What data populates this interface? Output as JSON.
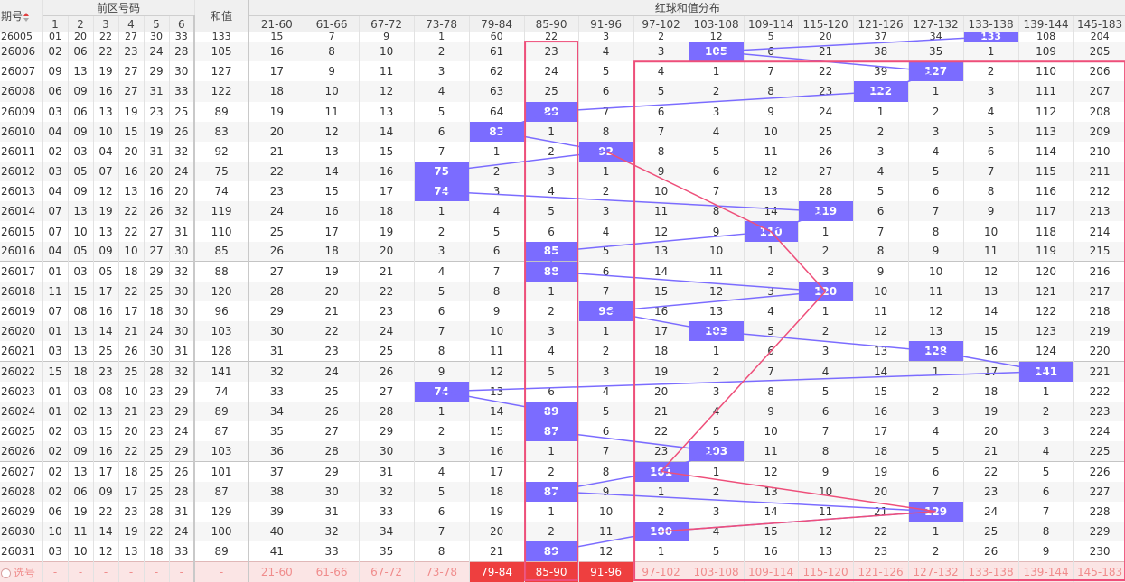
{
  "header": {
    "issue_label": "期号",
    "front_label": "前区号码",
    "front_cols": [
      "1",
      "2",
      "3",
      "4",
      "5",
      "6"
    ],
    "sum_label": "和值",
    "dist_label": "红球和值分布",
    "ranges": [
      "21-60",
      "61-66",
      "67-72",
      "73-78",
      "79-84",
      "85-90",
      "91-96",
      "97-102",
      "103-108",
      "109-114",
      "115-120",
      "121-126",
      "127-132",
      "133-138",
      "139-144",
      "145-183"
    ]
  },
  "colors": {
    "hit": "#7b6cff",
    "trend_line": "#7b6cff",
    "box": "#ee4f7a",
    "highlight": "#ee3f3f"
  },
  "rows": [
    {
      "issue": "26005",
      "front": [
        "01",
        "20",
        "22",
        "27",
        "30",
        "33"
      ],
      "sum": "133",
      "dist": [
        "15",
        "7",
        "9",
        "1",
        "60",
        "22",
        "3",
        "2",
        "12",
        "5",
        "20",
        "37",
        "34",
        "133",
        "108",
        "204"
      ],
      "hit": 13
    },
    {
      "issue": "26006",
      "front": [
        "02",
        "06",
        "22",
        "23",
        "24",
        "28"
      ],
      "sum": "105",
      "dist": [
        "16",
        "8",
        "10",
        "2",
        "61",
        "23",
        "4",
        "3",
        "105",
        "6",
        "21",
        "38",
        "35",
        "1",
        "109",
        "205"
      ],
      "hit": 8
    },
    {
      "issue": "26007",
      "front": [
        "09",
        "13",
        "19",
        "27",
        "29",
        "30"
      ],
      "sum": "127",
      "dist": [
        "17",
        "9",
        "11",
        "3",
        "62",
        "24",
        "5",
        "4",
        "1",
        "7",
        "22",
        "39",
        "127",
        "2",
        "110",
        "206"
      ],
      "hit": 12
    },
    {
      "issue": "26008",
      "front": [
        "06",
        "09",
        "16",
        "27",
        "31",
        "33"
      ],
      "sum": "122",
      "dist": [
        "18",
        "10",
        "12",
        "4",
        "63",
        "25",
        "6",
        "5",
        "2",
        "8",
        "23",
        "122",
        "1",
        "3",
        "111",
        "207"
      ],
      "hit": 11
    },
    {
      "issue": "26009",
      "front": [
        "03",
        "06",
        "13",
        "19",
        "23",
        "25"
      ],
      "sum": "89",
      "dist": [
        "19",
        "11",
        "13",
        "5",
        "64",
        "89",
        "7",
        "6",
        "3",
        "9",
        "24",
        "1",
        "2",
        "4",
        "112",
        "208"
      ],
      "hit": 5
    },
    {
      "issue": "26010",
      "front": [
        "04",
        "09",
        "10",
        "15",
        "19",
        "26"
      ],
      "sum": "83",
      "dist": [
        "20",
        "12",
        "14",
        "6",
        "83",
        "1",
        "8",
        "7",
        "4",
        "10",
        "25",
        "2",
        "3",
        "5",
        "113",
        "209"
      ],
      "hit": 4
    },
    {
      "issue": "26011",
      "front": [
        "02",
        "03",
        "04",
        "20",
        "31",
        "32"
      ],
      "sum": "92",
      "dist": [
        "21",
        "13",
        "15",
        "7",
        "1",
        "2",
        "92",
        "8",
        "5",
        "11",
        "26",
        "3",
        "4",
        "6",
        "114",
        "210"
      ],
      "hit": 6
    },
    {
      "issue": "26012",
      "front": [
        "03",
        "05",
        "07",
        "16",
        "20",
        "24"
      ],
      "sum": "75",
      "dist": [
        "22",
        "14",
        "16",
        "75",
        "2",
        "3",
        "1",
        "9",
        "6",
        "12",
        "27",
        "4",
        "5",
        "7",
        "115",
        "211"
      ],
      "hit": 3
    },
    {
      "issue": "26013",
      "front": [
        "04",
        "09",
        "12",
        "13",
        "16",
        "20"
      ],
      "sum": "74",
      "dist": [
        "23",
        "15",
        "17",
        "74",
        "3",
        "4",
        "2",
        "10",
        "7",
        "13",
        "28",
        "5",
        "6",
        "8",
        "116",
        "212"
      ],
      "hit": 3
    },
    {
      "issue": "26014",
      "front": [
        "07",
        "13",
        "19",
        "22",
        "26",
        "32"
      ],
      "sum": "119",
      "dist": [
        "24",
        "16",
        "18",
        "1",
        "4",
        "5",
        "3",
        "11",
        "8",
        "14",
        "119",
        "6",
        "7",
        "9",
        "117",
        "213"
      ],
      "hit": 10
    },
    {
      "issue": "26015",
      "front": [
        "07",
        "10",
        "13",
        "22",
        "27",
        "31"
      ],
      "sum": "110",
      "dist": [
        "25",
        "17",
        "19",
        "2",
        "5",
        "6",
        "4",
        "12",
        "9",
        "110",
        "1",
        "7",
        "8",
        "10",
        "118",
        "214"
      ],
      "hit": 9
    },
    {
      "issue": "26016",
      "front": [
        "04",
        "05",
        "09",
        "10",
        "27",
        "30"
      ],
      "sum": "85",
      "dist": [
        "26",
        "18",
        "20",
        "3",
        "6",
        "85",
        "5",
        "13",
        "10",
        "1",
        "2",
        "8",
        "9",
        "11",
        "119",
        "215"
      ],
      "hit": 5
    },
    {
      "issue": "26017",
      "front": [
        "01",
        "03",
        "05",
        "18",
        "29",
        "32"
      ],
      "sum": "88",
      "dist": [
        "27",
        "19",
        "21",
        "4",
        "7",
        "88",
        "6",
        "14",
        "11",
        "2",
        "3",
        "9",
        "10",
        "12",
        "120",
        "216"
      ],
      "hit": 5
    },
    {
      "issue": "26018",
      "front": [
        "11",
        "15",
        "17",
        "22",
        "25",
        "30"
      ],
      "sum": "120",
      "dist": [
        "28",
        "20",
        "22",
        "5",
        "8",
        "1",
        "7",
        "15",
        "12",
        "3",
        "120",
        "10",
        "11",
        "13",
        "121",
        "217"
      ],
      "hit": 10
    },
    {
      "issue": "26019",
      "front": [
        "07",
        "08",
        "16",
        "17",
        "18",
        "30"
      ],
      "sum": "96",
      "dist": [
        "29",
        "21",
        "23",
        "6",
        "9",
        "2",
        "96",
        "16",
        "13",
        "4",
        "1",
        "11",
        "12",
        "14",
        "122",
        "218"
      ],
      "hit": 6
    },
    {
      "issue": "26020",
      "front": [
        "01",
        "13",
        "14",
        "21",
        "24",
        "30"
      ],
      "sum": "103",
      "dist": [
        "30",
        "22",
        "24",
        "7",
        "10",
        "3",
        "1",
        "17",
        "103",
        "5",
        "2",
        "12",
        "13",
        "15",
        "123",
        "219"
      ],
      "hit": 8
    },
    {
      "issue": "26021",
      "front": [
        "03",
        "13",
        "25",
        "26",
        "30",
        "31"
      ],
      "sum": "128",
      "dist": [
        "31",
        "23",
        "25",
        "8",
        "11",
        "4",
        "2",
        "18",
        "1",
        "6",
        "3",
        "13",
        "128",
        "16",
        "124",
        "220"
      ],
      "hit": 12
    },
    {
      "issue": "26022",
      "front": [
        "15",
        "18",
        "23",
        "25",
        "28",
        "32"
      ],
      "sum": "141",
      "dist": [
        "32",
        "24",
        "26",
        "9",
        "12",
        "5",
        "3",
        "19",
        "2",
        "7",
        "4",
        "14",
        "1",
        "17",
        "141",
        "221"
      ],
      "hit": 14
    },
    {
      "issue": "26023",
      "front": [
        "01",
        "03",
        "08",
        "10",
        "23",
        "29"
      ],
      "sum": "74",
      "dist": [
        "33",
        "25",
        "27",
        "74",
        "13",
        "6",
        "4",
        "20",
        "3",
        "8",
        "5",
        "15",
        "2",
        "18",
        "1",
        "222"
      ],
      "hit": 3
    },
    {
      "issue": "26024",
      "front": [
        "01",
        "02",
        "13",
        "21",
        "23",
        "29"
      ],
      "sum": "89",
      "dist": [
        "34",
        "26",
        "28",
        "1",
        "14",
        "89",
        "5",
        "21",
        "4",
        "9",
        "6",
        "16",
        "3",
        "19",
        "2",
        "223"
      ],
      "hit": 5
    },
    {
      "issue": "26025",
      "front": [
        "02",
        "03",
        "15",
        "20",
        "23",
        "24"
      ],
      "sum": "87",
      "dist": [
        "35",
        "27",
        "29",
        "2",
        "15",
        "87",
        "6",
        "22",
        "5",
        "10",
        "7",
        "17",
        "4",
        "20",
        "3",
        "224"
      ],
      "hit": 5
    },
    {
      "issue": "26026",
      "front": [
        "02",
        "09",
        "16",
        "22",
        "25",
        "29"
      ],
      "sum": "103",
      "dist": [
        "36",
        "28",
        "30",
        "3",
        "16",
        "1",
        "7",
        "23",
        "103",
        "11",
        "8",
        "18",
        "5",
        "21",
        "4",
        "225"
      ],
      "hit": 8
    },
    {
      "issue": "26027",
      "front": [
        "02",
        "13",
        "17",
        "18",
        "25",
        "26"
      ],
      "sum": "101",
      "dist": [
        "37",
        "29",
        "31",
        "4",
        "17",
        "2",
        "8",
        "101",
        "1",
        "12",
        "9",
        "19",
        "6",
        "22",
        "5",
        "226"
      ],
      "hit": 7
    },
    {
      "issue": "26028",
      "front": [
        "02",
        "06",
        "09",
        "17",
        "25",
        "28"
      ],
      "sum": "87",
      "dist": [
        "38",
        "30",
        "32",
        "5",
        "18",
        "87",
        "9",
        "1",
        "2",
        "13",
        "10",
        "20",
        "7",
        "23",
        "6",
        "227"
      ],
      "hit": 5
    },
    {
      "issue": "26029",
      "front": [
        "06",
        "19",
        "22",
        "23",
        "28",
        "31"
      ],
      "sum": "129",
      "dist": [
        "39",
        "31",
        "33",
        "6",
        "19",
        "1",
        "10",
        "2",
        "3",
        "14",
        "11",
        "21",
        "129",
        "24",
        "7",
        "228"
      ],
      "hit": 12
    },
    {
      "issue": "26030",
      "front": [
        "10",
        "11",
        "14",
        "19",
        "22",
        "24"
      ],
      "sum": "100",
      "dist": [
        "40",
        "32",
        "34",
        "7",
        "20",
        "2",
        "11",
        "100",
        "4",
        "15",
        "12",
        "22",
        "1",
        "25",
        "8",
        "229"
      ],
      "hit": 7
    },
    {
      "issue": "26031",
      "front": [
        "03",
        "10",
        "12",
        "13",
        "18",
        "33"
      ],
      "sum": "89",
      "dist": [
        "41",
        "33",
        "35",
        "8",
        "21",
        "89",
        "12",
        "1",
        "5",
        "16",
        "13",
        "23",
        "2",
        "26",
        "9",
        "230"
      ],
      "hit": 5
    }
  ],
  "footer": {
    "label": "选号",
    "dashes": [
      "-",
      "-",
      "-",
      "-",
      "-",
      "-"
    ],
    "sum_dash": "-",
    "ranges": [
      "21-60",
      "61-66",
      "67-72",
      "73-78",
      "79-84",
      "85-90",
      "91-96",
      "97-102",
      "103-108",
      "109-114",
      "115-120",
      "121-126",
      "127-132",
      "133-138",
      "139-144",
      "145-183"
    ],
    "selected": [
      4,
      5,
      6
    ]
  },
  "boxes": [
    {
      "col_start": 5,
      "col_end": 5,
      "row_start": 1,
      "row_end": 26
    },
    {
      "col_start": 7,
      "col_end": 15,
      "row_start": 2,
      "row_end": 26
    }
  ],
  "pink_links": [
    [
      6,
      10
    ],
    [
      10,
      13
    ],
    [
      13,
      22
    ],
    [
      22,
      24
    ],
    [
      24,
      25
    ]
  ]
}
